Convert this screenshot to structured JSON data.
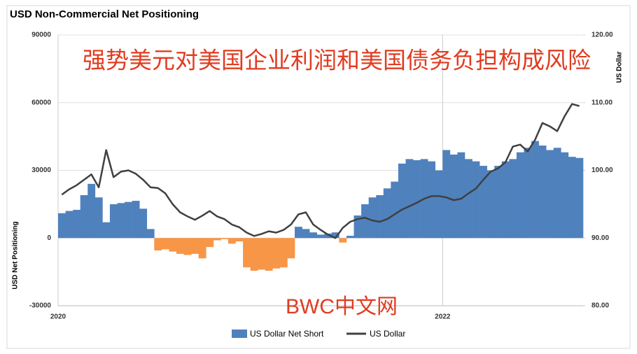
{
  "chart_data": {
    "type": "bar_line",
    "title": "USD Non-Commercial Net Positioning",
    "overlay_title": "强势美元对美国企业利润和美国债务负担构成风险",
    "watermark": "BWC中文网",
    "y_label": "USD Net Positioning",
    "y2_label": "US Dollar",
    "categories": [
      "2020",
      null,
      null,
      null,
      null,
      null,
      null,
      null,
      null,
      null,
      null,
      null,
      null,
      null,
      null,
      null,
      null,
      null,
      null,
      null,
      null,
      null,
      null,
      null,
      null,
      null,
      null,
      null,
      null,
      null,
      null,
      null,
      null,
      null,
      null,
      null,
      null,
      null,
      null,
      null,
      null,
      null,
      null,
      null,
      null,
      null,
      null,
      null,
      null,
      null,
      null,
      null,
      "2022",
      null,
      null,
      null,
      null,
      null,
      null,
      null,
      null,
      null,
      null,
      null,
      null,
      null,
      null,
      null,
      null,
      null,
      null
    ],
    "series": [
      {
        "name": "US Dollar Net Short",
        "type": "bar",
        "color": "#4f81bd",
        "negative_color": "#f79646",
        "values": [
          11000,
          12000,
          12500,
          19000,
          24000,
          18000,
          7000,
          15000,
          15500,
          16000,
          16500,
          13000,
          4000,
          -5500,
          -5000,
          -6000,
          -7000,
          -7500,
          -7000,
          -9000,
          -4000,
          -1000,
          -500,
          -2500,
          -1500,
          -13000,
          -14500,
          -14000,
          -14500,
          -13500,
          -13000,
          -9000,
          5000,
          4000,
          2500,
          1500,
          2000,
          2500,
          -2000,
          1000,
          10000,
          15000,
          18000,
          19000,
          22000,
          25000,
          33000,
          35000,
          34500,
          35000,
          34000,
          30000,
          39000,
          37000,
          38000,
          35000,
          34000,
          32000,
          30000,
          32000,
          34000,
          35000,
          38000,
          40000,
          43000,
          41000,
          39000,
          40000,
          38000,
          36000,
          35500
        ]
      },
      {
        "name": "US Dollar",
        "type": "line",
        "axis": "y2",
        "color": "#404040",
        "values": [
          96.4,
          97.2,
          97.8,
          98.6,
          99.4,
          97.5,
          103.0,
          99.0,
          99.8,
          100.0,
          99.5,
          98.6,
          97.5,
          97.4,
          96.6,
          95.0,
          93.8,
          93.2,
          92.7,
          93.3,
          94.0,
          93.2,
          92.8,
          92.0,
          91.6,
          90.8,
          90.3,
          90.6,
          91.0,
          90.8,
          91.2,
          92.0,
          93.5,
          93.8,
          92.0,
          91.2,
          90.5,
          90.0,
          91.5,
          92.4,
          92.8,
          93.0,
          92.6,
          92.4,
          92.8,
          93.5,
          94.2,
          94.7,
          95.2,
          95.8,
          96.2,
          96.2,
          96.0,
          95.6,
          95.8,
          96.6,
          97.3,
          98.6,
          99.8,
          100.3,
          101.2,
          103.5,
          103.8,
          102.8,
          104.5,
          107.0,
          106.5,
          105.8,
          108.0,
          109.8,
          109.5
        ]
      }
    ],
    "ylim": [
      -30000,
      90000
    ],
    "yticks": [
      -30000,
      0,
      30000,
      60000,
      90000
    ],
    "y2lim": [
      80,
      120
    ],
    "y2ticks": [
      {
        "value": 80,
        "label": "80.00"
      },
      {
        "value": 90,
        "label": "90.00"
      },
      {
        "value": 100,
        "label": "100.00"
      },
      {
        "value": 110,
        "label": "110.00"
      },
      {
        "value": 120,
        "label": "120.00"
      }
    ],
    "grid": true
  }
}
